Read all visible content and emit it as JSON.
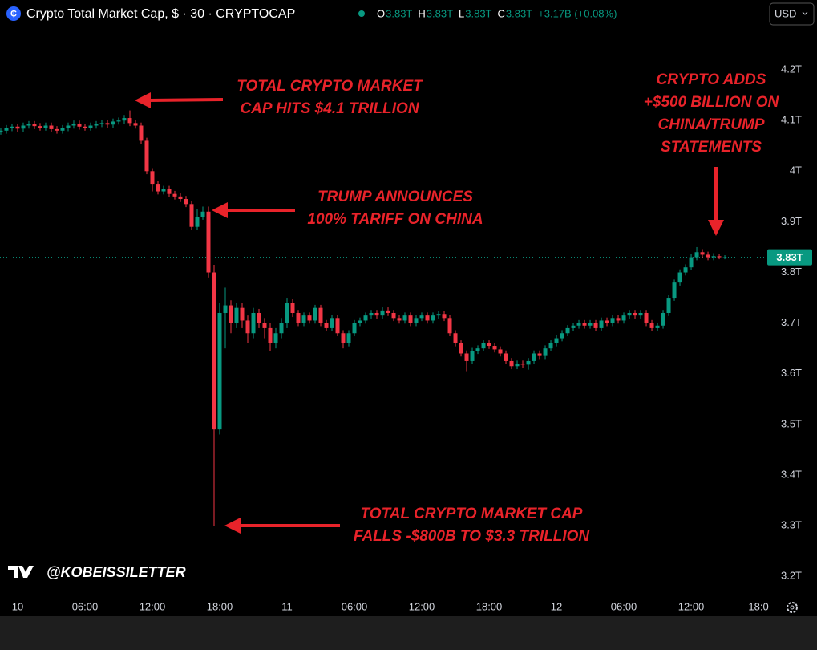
{
  "header": {
    "title": "Crypto Total Market Cap, $ · 30 · CRYPTOCAP",
    "ohlc": [
      {
        "key": "O",
        "value": "3.83T"
      },
      {
        "key": "H",
        "value": "3.83T"
      },
      {
        "key": "L",
        "value": "3.83T"
      },
      {
        "key": "C",
        "value": "3.83T"
      }
    ],
    "change": "+3.17B (+0.08%)",
    "currency": "USD"
  },
  "watermark": "@KOBEISSILETTER",
  "chart_data": {
    "type": "candlestick",
    "up_color": "#089981",
    "down_color": "#f23645",
    "xlim": [
      -1.57,
      66.64
    ],
    "ylim": [
      3.121,
      4.338
    ],
    "xticks": [
      {
        "value": 0,
        "label": "10"
      },
      {
        "value": 6,
        "label": "06:00"
      },
      {
        "value": 12,
        "label": "12:00"
      },
      {
        "value": 18,
        "label": "18:00"
      },
      {
        "value": 24,
        "label": "11"
      },
      {
        "value": 30,
        "label": "06:00"
      },
      {
        "value": 36,
        "label": "12:00"
      },
      {
        "value": 42,
        "label": "18:00"
      },
      {
        "value": 48,
        "label": "12"
      },
      {
        "value": 54,
        "label": "06:00"
      },
      {
        "value": 60,
        "label": "12:00"
      },
      {
        "value": 66,
        "label": "18:0"
      }
    ],
    "yticks": [
      {
        "value": 3.2,
        "label": "3.2T"
      },
      {
        "value": 3.3,
        "label": "3.3T"
      },
      {
        "value": 3.4,
        "label": "3.4T"
      },
      {
        "value": 3.5,
        "label": "3.5T"
      },
      {
        "value": 3.6,
        "label": "3.6T"
      },
      {
        "value": 3.7,
        "label": "3.7T"
      },
      {
        "value": 3.8,
        "label": "3.8T"
      },
      {
        "value": 3.9,
        "label": "3.9T"
      },
      {
        "value": 4.0,
        "label": "4T"
      },
      {
        "value": 4.1,
        "label": "4.1T"
      },
      {
        "value": 4.2,
        "label": "4.2T"
      }
    ],
    "last_price": {
      "value": 3.83,
      "label": "3.83T"
    },
    "x": [
      -1.5,
      -1,
      -0.5,
      0,
      0.5,
      1,
      1.5,
      2,
      2.5,
      3,
      3.5,
      4,
      4.5,
      5,
      5.5,
      6,
      6.5,
      7,
      7.5,
      8,
      8.5,
      9,
      9.5,
      10,
      10.5,
      11,
      11.5,
      12,
      12.5,
      13,
      13.5,
      14,
      14.5,
      15,
      15.5,
      16,
      16.5,
      17,
      17.5,
      18,
      18.5,
      19,
      19.5,
      20,
      20.5,
      21,
      21.5,
      22,
      22.5,
      23,
      23.5,
      24,
      24.5,
      25,
      25.5,
      26,
      26.5,
      27,
      27.5,
      28,
      28.5,
      29,
      29.5,
      30,
      30.5,
      31,
      31.5,
      32,
      32.5,
      33,
      33.5,
      34,
      34.5,
      35,
      35.5,
      36,
      36.5,
      37,
      37.5,
      38,
      38.5,
      39,
      39.5,
      40,
      40.5,
      41,
      41.5,
      42,
      42.5,
      43,
      43.5,
      44,
      44.5,
      45,
      45.5,
      46,
      46.5,
      47,
      47.5,
      48,
      48.5,
      49,
      49.5,
      50,
      50.5,
      51,
      51.5,
      52,
      52.5,
      53,
      53.5,
      54,
      54.5,
      55,
      55.5,
      56,
      56.5,
      57,
      57.5,
      58,
      58.5,
      59,
      59.5,
      60,
      60.5,
      61,
      61.5,
      62,
      62.5,
      63
    ],
    "open": [
      4.078,
      4.08,
      4.085,
      4.088,
      4.084,
      4.09,
      4.093,
      4.089,
      4.086,
      4.09,
      4.083,
      4.08,
      4.085,
      4.09,
      4.094,
      4.088,
      4.086,
      4.09,
      4.093,
      4.095,
      4.092,
      4.098,
      4.1,
      4.105,
      4.095,
      4.09,
      4.06,
      4.0,
      3.975,
      3.96,
      3.965,
      3.955,
      3.95,
      3.945,
      3.935,
      3.89,
      3.91,
      3.92,
      3.8,
      3.49,
      3.72,
      3.735,
      3.7,
      3.73,
      3.705,
      3.68,
      3.72,
      3.7,
      3.69,
      3.66,
      3.68,
      3.7,
      3.74,
      3.72,
      3.7,
      3.715,
      3.705,
      3.73,
      3.7,
      3.69,
      3.71,
      3.68,
      3.66,
      3.68,
      3.7,
      3.705,
      3.715,
      3.72,
      3.715,
      3.725,
      3.72,
      3.71,
      3.705,
      3.715,
      3.7,
      3.71,
      3.715,
      3.705,
      3.715,
      3.718,
      3.71,
      3.68,
      3.66,
      3.64,
      3.625,
      3.645,
      3.65,
      3.66,
      3.655,
      3.648,
      3.64,
      3.625,
      3.615,
      3.62,
      3.618,
      3.625,
      3.64,
      3.635,
      3.65,
      3.66,
      3.67,
      3.68,
      3.69,
      3.695,
      3.7,
      3.695,
      3.7,
      3.69,
      3.705,
      3.7,
      3.71,
      3.705,
      3.715,
      3.72,
      3.715,
      3.72,
      3.7,
      3.69,
      3.695,
      3.72,
      3.75,
      3.78,
      3.8,
      3.81,
      3.83,
      3.84,
      3.835,
      3.83,
      3.832,
      3.83
    ],
    "high": [
      4.086,
      4.091,
      4.094,
      4.094,
      4.096,
      4.099,
      4.099,
      4.095,
      4.096,
      4.096,
      4.089,
      4.091,
      4.096,
      4.1,
      4.1,
      4.094,
      4.096,
      4.099,
      4.101,
      4.101,
      4.104,
      4.106,
      4.111,
      4.12,
      4.101,
      4.096,
      4.066,
      4.006,
      3.981,
      3.971,
      3.971,
      3.961,
      3.956,
      3.951,
      3.941,
      3.925,
      3.93,
      3.93,
      3.815,
      3.74,
      3.77,
      3.745,
      3.74,
      3.74,
      3.715,
      3.73,
      3.728,
      3.71,
      3.7,
      3.69,
      3.71,
      3.75,
      3.748,
      3.726,
      3.721,
      3.721,
      3.736,
      3.736,
      3.706,
      3.716,
      3.716,
      3.686,
      3.686,
      3.706,
      3.711,
      3.721,
      3.726,
      3.726,
      3.731,
      3.731,
      3.726,
      3.716,
      3.721,
      3.721,
      3.716,
      3.721,
      3.721,
      3.721,
      3.724,
      3.724,
      3.716,
      3.686,
      3.666,
      3.646,
      3.651,
      3.656,
      3.666,
      3.666,
      3.661,
      3.654,
      3.646,
      3.631,
      3.626,
      3.626,
      3.631,
      3.646,
      3.646,
      3.656,
      3.666,
      3.676,
      3.686,
      3.696,
      3.701,
      3.706,
      3.706,
      3.706,
      3.706,
      3.711,
      3.711,
      3.716,
      3.716,
      3.721,
      3.726,
      3.726,
      3.726,
      3.726,
      3.706,
      3.701,
      3.726,
      3.756,
      3.786,
      3.806,
      3.816,
      3.836,
      3.85,
      3.846,
      3.841,
      3.838,
      3.836,
      3.834
    ],
    "low": [
      4.072,
      4.074,
      4.079,
      4.078,
      4.078,
      4.084,
      4.083,
      4.08,
      4.08,
      4.077,
      4.074,
      4.074,
      4.079,
      4.084,
      4.082,
      4.08,
      4.08,
      4.084,
      4.087,
      4.086,
      4.086,
      4.092,
      4.094,
      4.089,
      4.084,
      4.054,
      3.994,
      3.96,
      3.954,
      3.954,
      3.949,
      3.944,
      3.939,
      3.929,
      3.884,
      3.884,
      3.904,
      3.79,
      3.3,
      3.48,
      3.65,
      3.68,
      3.69,
      3.69,
      3.66,
      3.67,
      3.69,
      3.67,
      3.645,
      3.65,
      3.67,
      3.69,
      3.712,
      3.694,
      3.694,
      3.699,
      3.699,
      3.694,
      3.684,
      3.684,
      3.674,
      3.65,
      3.654,
      3.674,
      3.694,
      3.699,
      3.709,
      3.709,
      3.709,
      3.714,
      3.704,
      3.699,
      3.699,
      3.694,
      3.694,
      3.704,
      3.699,
      3.699,
      3.709,
      3.704,
      3.674,
      3.654,
      3.634,
      3.605,
      3.619,
      3.639,
      3.644,
      3.649,
      3.642,
      3.634,
      3.619,
      3.609,
      3.609,
      3.612,
      3.608,
      3.619,
      3.629,
      3.629,
      3.644,
      3.654,
      3.664,
      3.674,
      3.684,
      3.689,
      3.689,
      3.689,
      3.684,
      3.684,
      3.694,
      3.694,
      3.699,
      3.699,
      3.709,
      3.709,
      3.709,
      3.694,
      3.684,
      3.684,
      3.689,
      3.714,
      3.744,
      3.774,
      3.794,
      3.804,
      3.824,
      3.829,
      3.824,
      3.824,
      3.826,
      3.826
    ],
    "close": [
      4.08,
      4.085,
      4.088,
      4.084,
      4.09,
      4.093,
      4.089,
      4.086,
      4.09,
      4.083,
      4.08,
      4.085,
      4.09,
      4.094,
      4.088,
      4.086,
      4.09,
      4.093,
      4.095,
      4.092,
      4.098,
      4.1,
      4.105,
      4.095,
      4.09,
      4.06,
      4.0,
      3.975,
      3.96,
      3.965,
      3.955,
      3.95,
      3.945,
      3.935,
      3.89,
      3.91,
      3.92,
      3.8,
      3.49,
      3.72,
      3.735,
      3.7,
      3.73,
      3.705,
      3.68,
      3.72,
      3.7,
      3.69,
      3.66,
      3.68,
      3.7,
      3.74,
      3.72,
      3.7,
      3.715,
      3.705,
      3.73,
      3.7,
      3.69,
      3.71,
      3.68,
      3.66,
      3.68,
      3.7,
      3.705,
      3.715,
      3.72,
      3.715,
      3.725,
      3.72,
      3.71,
      3.705,
      3.715,
      3.7,
      3.71,
      3.715,
      3.705,
      3.715,
      3.718,
      3.71,
      3.68,
      3.66,
      3.64,
      3.625,
      3.645,
      3.65,
      3.66,
      3.655,
      3.648,
      3.64,
      3.625,
      3.615,
      3.62,
      3.618,
      3.625,
      3.64,
      3.635,
      3.65,
      3.66,
      3.67,
      3.68,
      3.69,
      3.695,
      3.7,
      3.695,
      3.7,
      3.69,
      3.705,
      3.7,
      3.71,
      3.705,
      3.715,
      3.72,
      3.715,
      3.72,
      3.7,
      3.69,
      3.695,
      3.72,
      3.75,
      3.78,
      3.8,
      3.81,
      3.83,
      3.84,
      3.835,
      3.83,
      3.832,
      3.83,
      3.83
    ],
    "annotations": [
      {
        "lines": [
          "TOTAL CRYPTO MARKET",
          "CAP HITS $4.1 TRILLION"
        ]
      },
      {
        "lines": [
          "TRUMP ANNOUNCES",
          "100% TARIFF ON CHINA"
        ]
      },
      {
        "lines": [
          "TOTAL CRYPTO MARKET CAP",
          "FALLS -$800B TO $3.3 TRILLION"
        ]
      },
      {
        "lines": [
          "CRYPTO ADDS",
          "+$500 BILLION ON",
          "CHINA/TRUMP",
          "STATEMENTS"
        ]
      }
    ]
  }
}
